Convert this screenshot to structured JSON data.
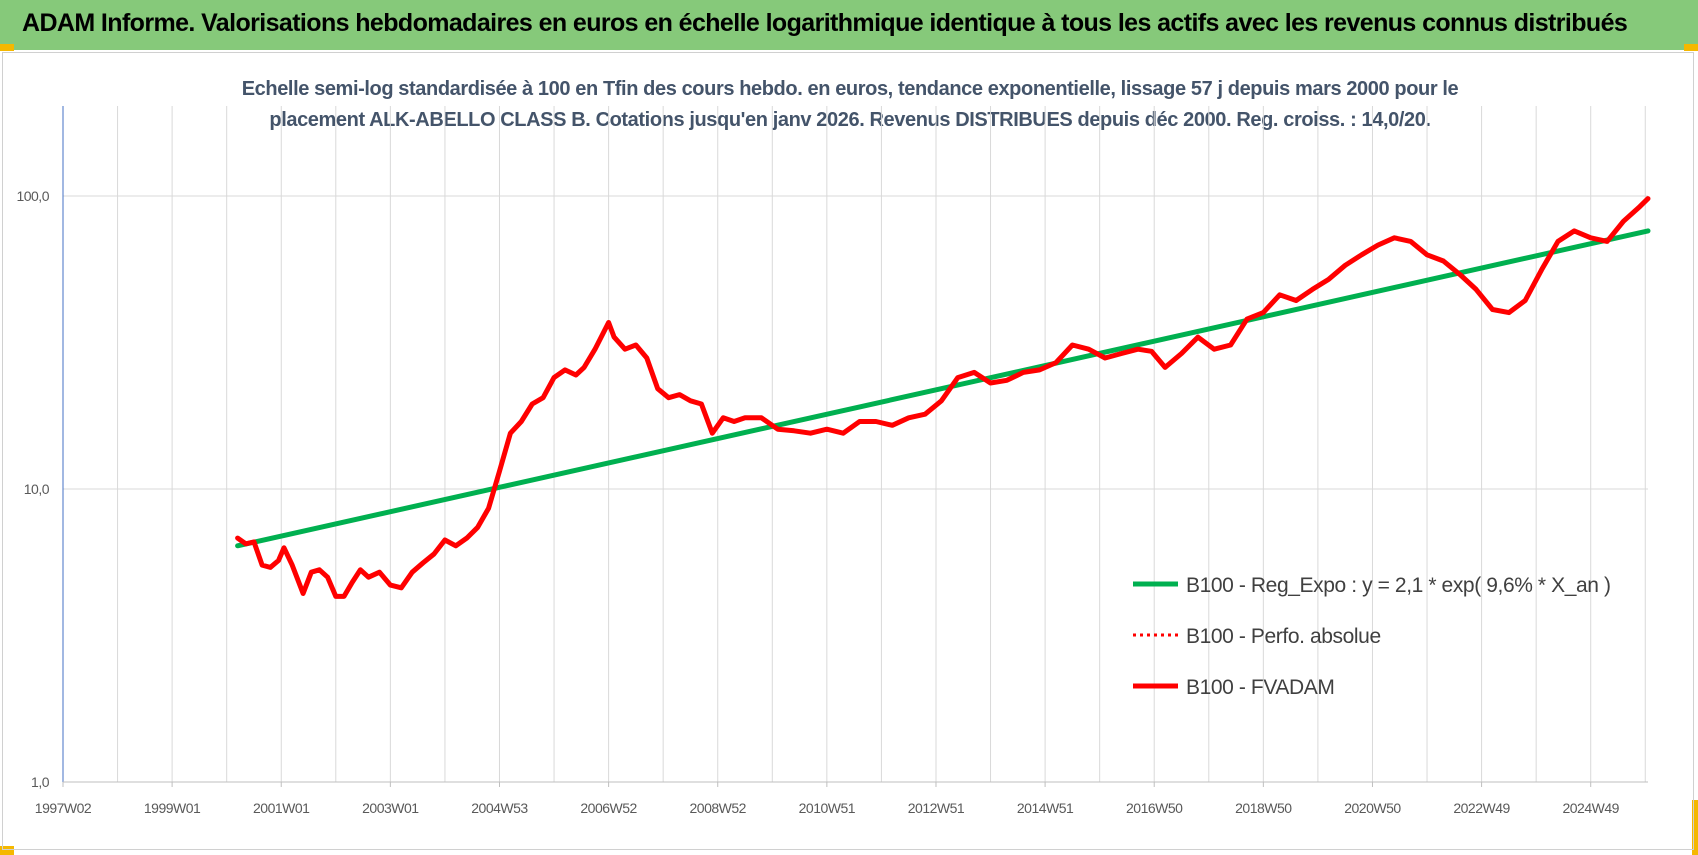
{
  "banner": {
    "title": "ADAM Informe. Valorisations hebdomadaires en euros en échelle logarithmique identique à tous les actifs avec les revenus connus distribués"
  },
  "chart_data": {
    "type": "line",
    "title_line1": "Echelle semi-log standardisée à 100 en Tfin des cours hebdo. en euros, tendance exponentielle, lissage 57 j depuis mars 2000 pour le",
    "title_line2": "placement ALK-ABELLO CLASS B. Cotations jusqu'en janv 2026. Revenus DISTRIBUES depuis déc 2000. Reg. croiss. : 14,0/20.",
    "y_scale": "log",
    "ylim": [
      1,
      200
    ],
    "y_ticks": [
      {
        "value": 1,
        "label": "1,0"
      },
      {
        "value": 10,
        "label": "10,0"
      },
      {
        "value": 100,
        "label": "100,0"
      }
    ],
    "xlim": [
      1997.0,
      2026.05
    ],
    "x_ticks": [
      {
        "value": 1997.0,
        "label": "1997W02"
      },
      {
        "value": 1999.0,
        "label": "1999W01"
      },
      {
        "value": 2001.0,
        "label": "2001W01"
      },
      {
        "value": 2003.0,
        "label": "2003W01"
      },
      {
        "value": 2005.0,
        "label": "2004W53"
      },
      {
        "value": 2007.0,
        "label": "2006W52"
      },
      {
        "value": 2009.0,
        "label": "2008W52"
      },
      {
        "value": 2011.0,
        "label": "2010W51"
      },
      {
        "value": 2013.0,
        "label": "2012W51"
      },
      {
        "value": 2015.0,
        "label": "2014W51"
      },
      {
        "value": 2017.0,
        "label": "2016W50"
      },
      {
        "value": 2019.0,
        "label": "2018W50"
      },
      {
        "value": 2021.0,
        "label": "2020W50"
      },
      {
        "value": 2023.0,
        "label": "2022W49"
      },
      {
        "value": 2025.0,
        "label": "2024W49"
      }
    ],
    "grid": true,
    "legend_position": "right-center",
    "series": [
      {
        "name": "B100 - Reg_Expo : y = 2,1 * exp( 9,6% *  X_an )",
        "color": "#00b050",
        "style": "solid",
        "x": [
          2000.2,
          2026.05
        ],
        "y": [
          6.4,
          76.0
        ]
      },
      {
        "name": "B100 - Perfo. absolue",
        "color": "#ff0000",
        "style": "dotted",
        "x": [],
        "y": []
      },
      {
        "name": "B100 - FVADAM",
        "color": "#ff0000",
        "style": "solid",
        "x": [
          2000.2,
          2000.35,
          2000.5,
          2000.65,
          2000.8,
          2000.95,
          2001.05,
          2001.2,
          2001.4,
          2001.55,
          2001.7,
          2001.85,
          2002.0,
          2002.15,
          2002.3,
          2002.45,
          2002.6,
          2002.8,
          2003.0,
          2003.2,
          2003.4,
          2003.6,
          2003.8,
          2004.0,
          2004.2,
          2004.4,
          2004.6,
          2004.8,
          2005.0,
          2005.2,
          2005.4,
          2005.6,
          2005.8,
          2006.0,
          2006.2,
          2006.4,
          2006.55,
          2006.75,
          2007.0,
          2007.1,
          2007.3,
          2007.5,
          2007.7,
          2007.9,
          2008.1,
          2008.3,
          2008.5,
          2008.7,
          2008.9,
          2009.1,
          2009.3,
          2009.5,
          2009.8,
          2010.1,
          2010.4,
          2010.7,
          2011.0,
          2011.3,
          2011.6,
          2011.9,
          2012.2,
          2012.5,
          2012.8,
          2013.1,
          2013.4,
          2013.7,
          2014.0,
          2014.3,
          2014.6,
          2014.9,
          2015.2,
          2015.5,
          2015.8,
          2016.1,
          2016.4,
          2016.7,
          2016.95,
          2017.2,
          2017.5,
          2017.8,
          2018.1,
          2018.4,
          2018.7,
          2019.0,
          2019.3,
          2019.6,
          2019.9,
          2020.2,
          2020.5,
          2020.8,
          2021.1,
          2021.4,
          2021.7,
          2022.0,
          2022.3,
          2022.6,
          2022.9,
          2023.2,
          2023.5,
          2023.8,
          2024.1,
          2024.4,
          2024.7,
          2025.0,
          2025.3,
          2025.6,
          2025.9,
          2026.05
        ],
        "y": [
          6.8,
          6.5,
          6.6,
          5.5,
          5.4,
          5.7,
          6.3,
          5.5,
          4.4,
          5.2,
          5.3,
          5.0,
          4.3,
          4.3,
          4.8,
          5.3,
          5.0,
          5.2,
          4.7,
          4.6,
          5.2,
          5.6,
          6.0,
          6.7,
          6.4,
          6.8,
          7.4,
          8.6,
          11.5,
          15.5,
          17.0,
          19.5,
          20.5,
          24.0,
          25.5,
          24.5,
          26.0,
          30.0,
          37.0,
          33.0,
          30.0,
          31.0,
          28.0,
          22.0,
          20.5,
          21.0,
          20.0,
          19.5,
          15.5,
          17.5,
          17.0,
          17.5,
          17.5,
          16.0,
          15.8,
          15.5,
          16.0,
          15.5,
          17.0,
          17.0,
          16.5,
          17.5,
          18.0,
          20.0,
          24.0,
          25.0,
          23.0,
          23.5,
          25.0,
          25.5,
          27.0,
          31.0,
          30.0,
          28.0,
          29.0,
          30.0,
          29.5,
          26.0,
          29.0,
          33.0,
          30.0,
          31.0,
          38.0,
          40.0,
          46.0,
          44.0,
          48.0,
          52.0,
          58.0,
          63.0,
          68.0,
          72.0,
          70.0,
          63.0,
          60.0,
          54.0,
          48.0,
          41.0,
          40.0,
          44.0,
          56.0,
          70.0,
          76.0,
          72.0,
          70.0,
          82.0,
          92.0,
          98.0
        ]
      }
    ]
  }
}
